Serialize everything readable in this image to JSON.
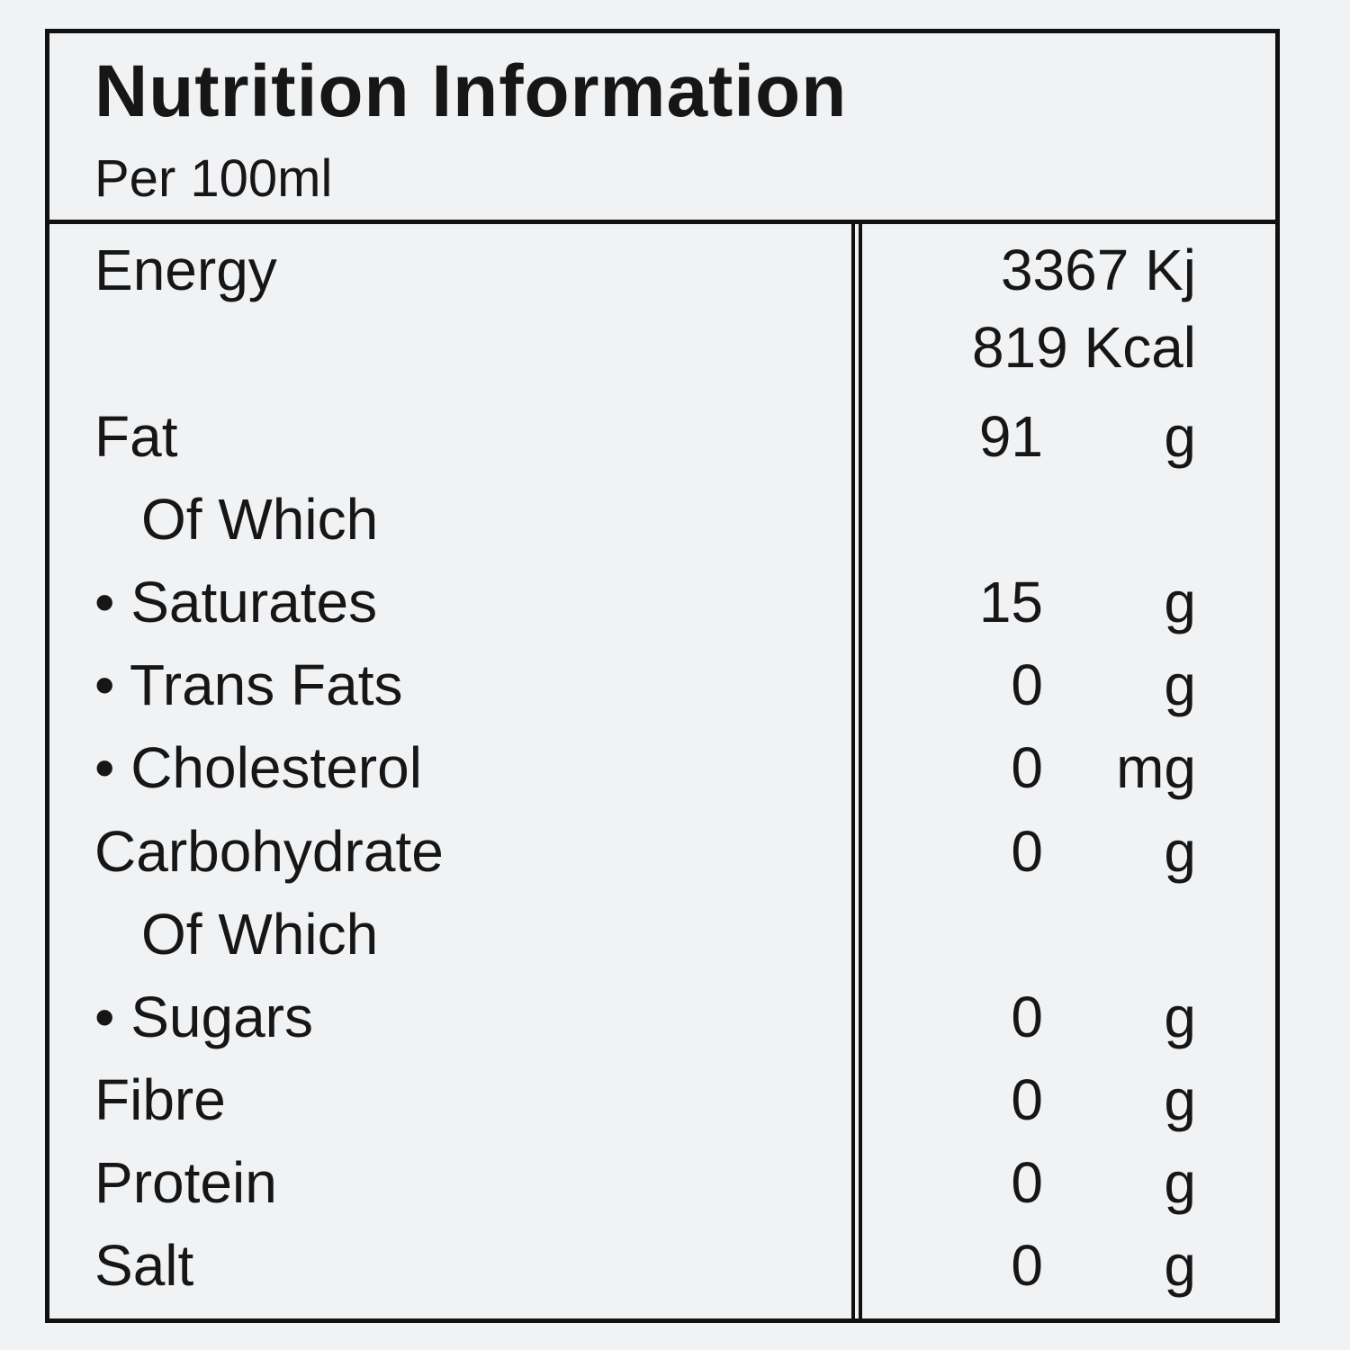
{
  "header": {
    "title": "Nutrition Information",
    "subtitle": "Per 100ml"
  },
  "energy": {
    "label": "Energy",
    "kj": "3367 Kj",
    "kcal": "819 Kcal"
  },
  "rows": [
    {
      "label": "Fat",
      "value": "91",
      "unit": "g"
    },
    {
      "label": "Of Which",
      "value": "",
      "unit": ""
    },
    {
      "label": "• Saturates",
      "value": "15",
      "unit": "g"
    },
    {
      "label": "• Trans Fats",
      "value": "0",
      "unit": "g"
    },
    {
      "label": "• Cholesterol",
      "value": "0",
      "unit": "mg"
    },
    {
      "label": "Carbohydrate",
      "value": "0",
      "unit": "g"
    },
    {
      "label": "Of Which",
      "value": "",
      "unit": ""
    },
    {
      "label": "• Sugars",
      "value": "0",
      "unit": "g"
    },
    {
      "label": "Fibre",
      "value": "0",
      "unit": "g"
    },
    {
      "label": "Protein",
      "value": "0",
      "unit": "g"
    },
    {
      "label": "Salt",
      "value": "0",
      "unit": "g"
    }
  ]
}
